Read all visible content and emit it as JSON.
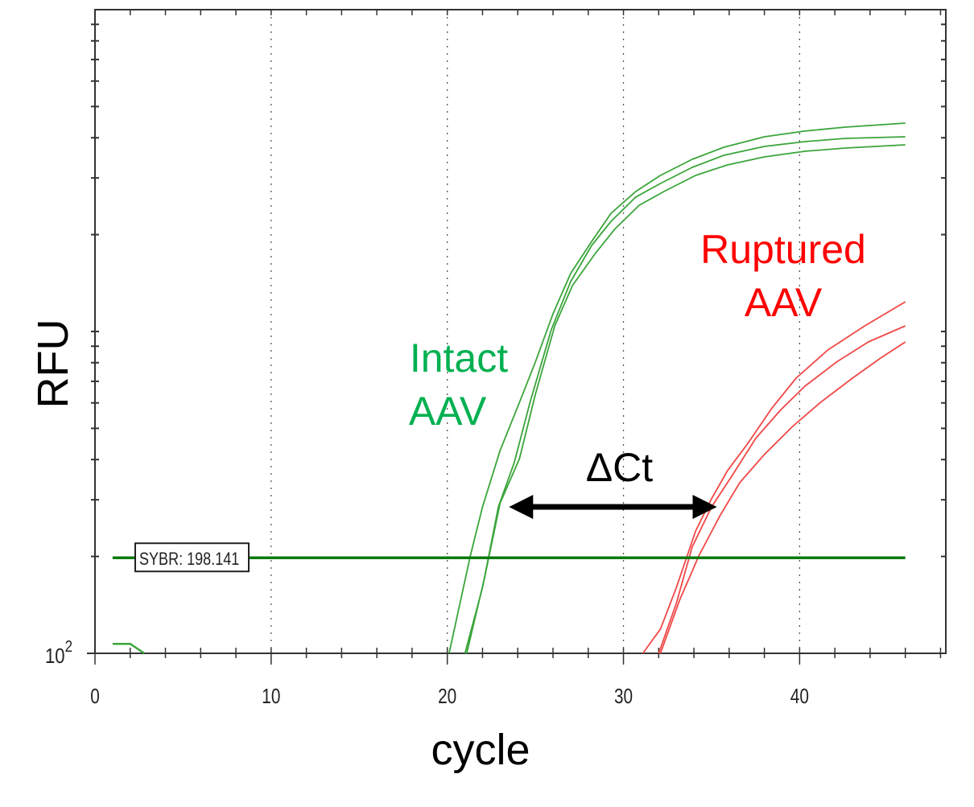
{
  "chart_data": {
    "type": "line",
    "xlabel": "cycle",
    "ylabel": "RFU",
    "xlim": [
      0,
      48.3
    ],
    "ylim": [
      100,
      10000
    ],
    "yscale": "log",
    "x_ticks": [
      0,
      10,
      20,
      30,
      40
    ],
    "x_minor_step": 2,
    "y_tick_label": {
      "base": "10",
      "exp": "2"
    },
    "grid": "vertical dotted at major x ticks",
    "colors": {
      "intact": "#3aa53a",
      "ruptured": "#f04848",
      "threshold": "#0a7a0a",
      "annotation_intact": "#00b050",
      "annotation_ruptured": "#ff0000"
    },
    "threshold": {
      "label": "SYBR: 198.141",
      "value": 198.141,
      "x_range": [
        1,
        46
      ]
    },
    "baseline_segment": [
      [
        1,
        107
      ],
      [
        2,
        107
      ],
      [
        2.8,
        100
      ]
    ],
    "series": [
      {
        "group": "intact",
        "points": [
          [
            20.1,
            100
          ],
          [
            21.3,
            200
          ],
          [
            22.0,
            285
          ],
          [
            23.0,
            427
          ],
          [
            24.1,
            603
          ],
          [
            25.0,
            804
          ],
          [
            26.0,
            1135
          ],
          [
            27.0,
            1514
          ],
          [
            28.2,
            1905
          ],
          [
            29.3,
            2331
          ],
          [
            30.7,
            2723
          ],
          [
            32.1,
            3055
          ],
          [
            33.9,
            3428
          ],
          [
            35.7,
            3737
          ],
          [
            38.0,
            4027
          ],
          [
            40.3,
            4194
          ],
          [
            42.6,
            4315
          ],
          [
            46.0,
            4442
          ]
        ]
      },
      {
        "group": "intact",
        "points": [
          [
            21.0,
            100
          ],
          [
            22.0,
            160
          ],
          [
            22.9,
            285
          ],
          [
            23.8,
            391
          ],
          [
            24.7,
            603
          ],
          [
            25.9,
            1012
          ],
          [
            27.0,
            1429
          ],
          [
            28.2,
            1851
          ],
          [
            29.3,
            2200
          ],
          [
            30.7,
            2616
          ],
          [
            32.1,
            2884
          ],
          [
            33.9,
            3236
          ],
          [
            35.7,
            3528
          ],
          [
            38.0,
            3758
          ],
          [
            40.3,
            3890
          ],
          [
            42.6,
            3981
          ],
          [
            46.0,
            4027
          ]
        ]
      },
      {
        "group": "intact",
        "points": [
          [
            21.1,
            100
          ],
          [
            22.1,
            170
          ],
          [
            23.0,
            293
          ],
          [
            24.1,
            403
          ],
          [
            25.0,
            638
          ],
          [
            26.1,
            1041
          ],
          [
            27.1,
            1388
          ],
          [
            28.4,
            1748
          ],
          [
            29.5,
            2078
          ],
          [
            30.9,
            2469
          ],
          [
            32.3,
            2723
          ],
          [
            34.1,
            3055
          ],
          [
            35.9,
            3293
          ],
          [
            38.0,
            3487
          ],
          [
            40.3,
            3631
          ],
          [
            42.6,
            3715
          ],
          [
            46.0,
            3802
          ]
        ]
      },
      {
        "group": "ruptured",
        "points": [
          [
            31.1,
            100
          ],
          [
            32.1,
            119
          ],
          [
            33.0,
            160
          ],
          [
            34.1,
            240
          ],
          [
            35.0,
            302
          ],
          [
            35.9,
            369
          ],
          [
            37.1,
            452
          ],
          [
            38.4,
            575
          ],
          [
            39.8,
            716
          ],
          [
            41.6,
            876
          ],
          [
            43.7,
            1041
          ],
          [
            46.0,
            1237
          ]
        ]
      },
      {
        "group": "ruptured",
        "points": [
          [
            32.0,
            100
          ],
          [
            33.0,
            143
          ],
          [
            33.9,
            214
          ],
          [
            35.0,
            285
          ],
          [
            36.2,
            359
          ],
          [
            37.5,
            465
          ],
          [
            38.9,
            569
          ],
          [
            40.3,
            676
          ],
          [
            42.1,
            804
          ],
          [
            43.9,
            928
          ],
          [
            46.0,
            1041
          ]
        ]
      },
      {
        "group": "ruptured",
        "points": [
          [
            32.1,
            100
          ],
          [
            33.2,
            147
          ],
          [
            34.3,
            202
          ],
          [
            35.5,
            269
          ],
          [
            36.6,
            339
          ],
          [
            38.0,
            415
          ],
          [
            39.6,
            507
          ],
          [
            41.2,
            603
          ],
          [
            43.0,
            716
          ],
          [
            44.6,
            827
          ],
          [
            46.0,
            928
          ]
        ]
      }
    ],
    "annotations": {
      "intact": [
        "Intact",
        "AAV"
      ],
      "ruptured": [
        "Ruptured",
        "AAV"
      ],
      "delta_ct": {
        "label": "ΔCt",
        "x_from": 23.5,
        "x_to": 35.3,
        "y": 285
      }
    }
  }
}
